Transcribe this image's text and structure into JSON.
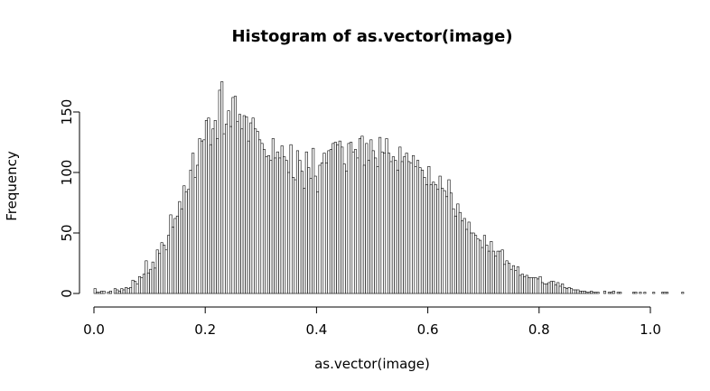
{
  "chart_data": {
    "type": "bar",
    "title": "Histogram of as.vector(image)",
    "xlabel": "as.vector(image)",
    "ylabel": "Frequency",
    "xlim": [
      0,
      1
    ],
    "ylim": [
      0,
      175
    ],
    "bin_width": 0.004,
    "x_ticks": [
      {
        "value": 0.0,
        "label": "0.0"
      },
      {
        "value": 0.2,
        "label": "0.2"
      },
      {
        "value": 0.4,
        "label": "0.4"
      },
      {
        "value": 0.6,
        "label": "0.6"
      },
      {
        "value": 0.8,
        "label": "0.8"
      },
      {
        "value": 1.0,
        "label": "1.0"
      }
    ],
    "y_ticks": [
      {
        "value": 0,
        "label": "0"
      },
      {
        "value": 50,
        "label": "50"
      },
      {
        "value": 100,
        "label": "100"
      },
      {
        "value": 150,
        "label": "150"
      }
    ],
    "values": [
      4,
      1,
      1,
      2,
      2,
      0,
      1,
      2,
      0,
      4,
      3,
      2,
      4,
      3,
      5,
      4,
      5,
      11,
      10,
      8,
      14,
      13,
      16,
      27,
      17,
      20,
      26,
      21,
      36,
      33,
      42,
      40,
      36,
      48,
      65,
      55,
      62,
      64,
      76,
      70,
      89,
      84,
      86,
      102,
      116,
      96,
      106,
      128,
      126,
      127,
      143,
      145,
      123,
      136,
      143,
      128,
      168,
      175,
      132,
      140,
      151,
      138,
      162,
      163,
      142,
      148,
      136,
      147,
      146,
      126,
      141,
      145,
      136,
      134,
      127,
      124,
      119,
      113,
      114,
      110,
      128,
      112,
      117,
      112,
      122,
      113,
      110,
      100,
      123,
      96,
      94,
      118,
      110,
      101,
      87,
      117,
      104,
      95,
      120,
      97,
      84,
      106,
      108,
      116,
      108,
      118,
      119,
      124,
      125,
      123,
      126,
      121,
      107,
      101,
      124,
      125,
      117,
      119,
      112,
      128,
      130,
      106,
      124,
      110,
      127,
      118,
      112,
      105,
      129,
      117,
      116,
      128,
      116,
      109,
      113,
      110,
      102,
      121,
      109,
      113,
      116,
      109,
      108,
      114,
      105,
      110,
      104,
      102,
      96,
      90,
      105,
      90,
      92,
      90,
      86,
      97,
      87,
      85,
      80,
      94,
      83,
      70,
      64,
      74,
      67,
      60,
      62,
      53,
      59,
      50,
      50,
      48,
      45,
      44,
      38,
      48,
      40,
      35,
      43,
      35,
      31,
      35,
      35,
      36,
      24,
      27,
      25,
      20,
      23,
      19,
      22,
      15,
      16,
      14,
      15,
      13,
      13,
      13,
      13,
      12,
      14,
      9,
      8,
      8,
      9,
      10,
      10,
      7,
      9,
      6,
      8,
      5,
      4,
      5,
      4,
      3,
      3,
      3,
      2,
      2,
      2,
      1,
      1,
      2,
      1,
      1,
      1,
      0,
      0,
      2,
      0,
      1,
      1,
      2,
      0,
      1,
      1,
      0,
      0,
      0,
      0,
      0,
      1,
      1,
      0,
      1,
      0,
      1,
      0,
      0,
      0,
      1,
      0,
      0,
      0,
      1,
      1,
      1,
      0,
      0,
      0,
      0,
      0,
      0,
      1
    ]
  }
}
